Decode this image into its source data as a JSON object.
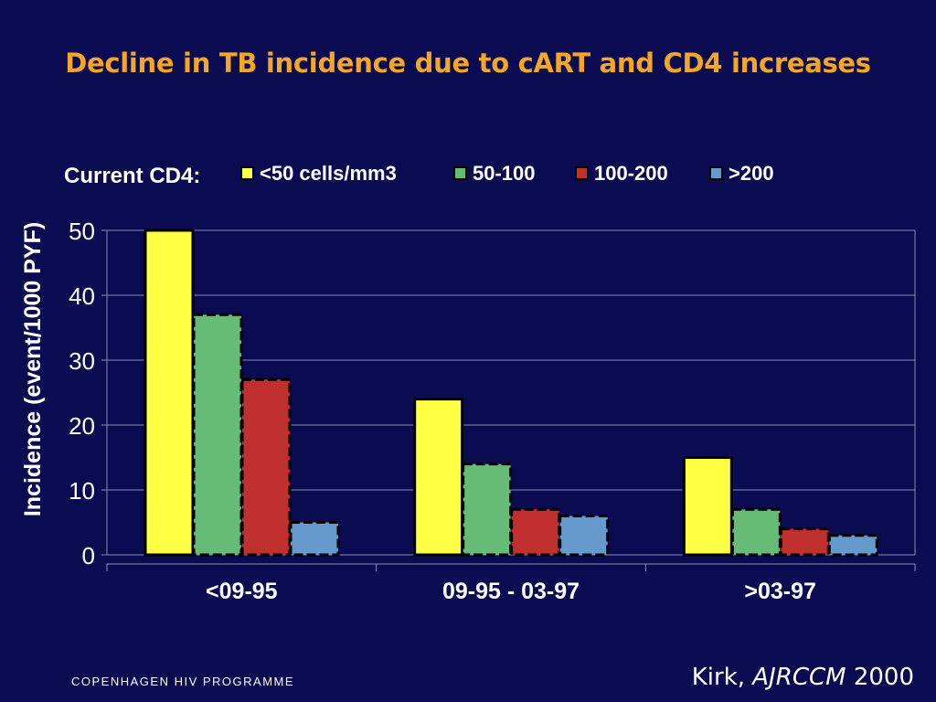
{
  "slide": {
    "title": "Decline in TB incidence due to cART and CD4 increases",
    "footer_org": "COPENHAGEN HIV PROGRAMME",
    "citation_author": "Kirk, ",
    "citation_journal": "AJRCCM",
    "citation_year": " 2000"
  },
  "colors": {
    "background": "#0b0b52",
    "title": "#f5a623",
    "text": "#ffffff",
    "grid": "#8a8ab8",
    "bar_outline": "#000000"
  },
  "chart_data": {
    "type": "bar",
    "title": "",
    "legend_title": "Current CD4:",
    "legend_position": "top",
    "xlabel": "",
    "ylabel": "Incidence (event/1000 PYF)",
    "ylim": [
      0,
      50
    ],
    "yticks": [
      0,
      10,
      20,
      30,
      40,
      50
    ],
    "grid": true,
    "categories": [
      "<09-95",
      "09-95 - 03-97",
      ">03-97"
    ],
    "series": [
      {
        "name": "<50 cells/mm3",
        "color": "#ffff44",
        "values": [
          50,
          24,
          15
        ]
      },
      {
        "name": "50-100",
        "color": "#66bb77",
        "values": [
          37,
          14,
          7
        ]
      },
      {
        "name": "100-200",
        "color": "#c0302e",
        "values": [
          27,
          7,
          4
        ]
      },
      {
        "name": ">200",
        "color": "#6699cc",
        "values": [
          5,
          6,
          3
        ]
      }
    ]
  }
}
